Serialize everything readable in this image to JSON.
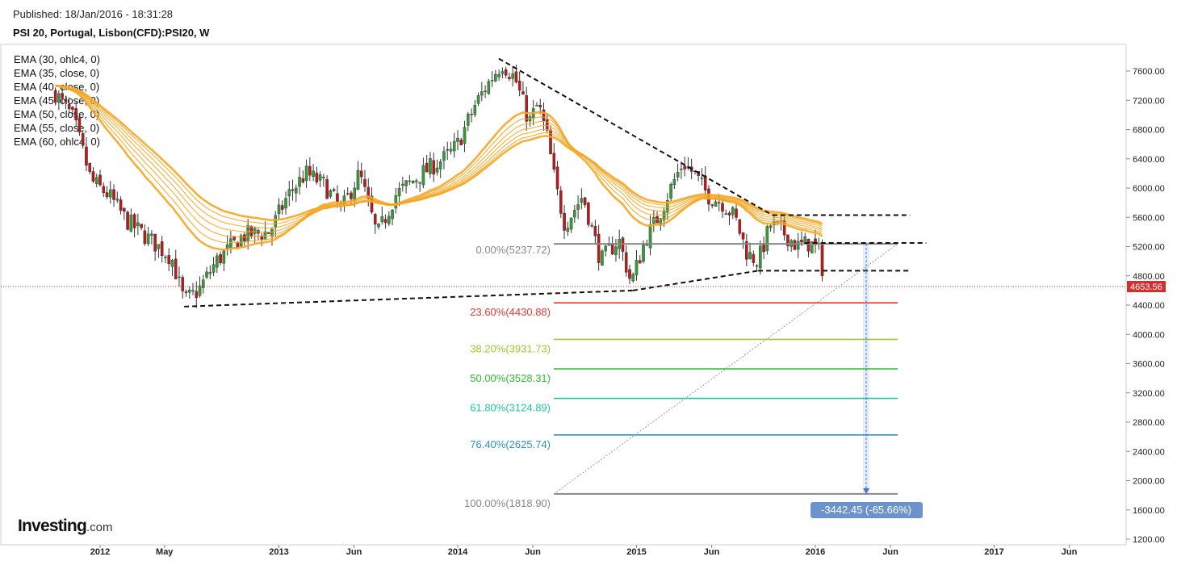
{
  "header": {
    "published": "Published: 18/Jan/2016 - 18:31:28",
    "title": "PSI 20, Portugal, Lisbon(CFD):PSI20, W"
  },
  "indicators": [
    "EMA (30, ohlc4, 0)",
    "EMA (35, close, 0)",
    "EMA (40, close, 0)",
    "EMA (45, close, 0)",
    "EMA (50, close, 0)",
    "EMA (55, close, 0)",
    "EMA (60, ohlc4, 0)"
  ],
  "logo": {
    "main": "Investing",
    "suffix": ".com"
  },
  "colors": {
    "bull": "#3a9a3a",
    "bear": "#b71c1c",
    "ema": "#f5a623",
    "fib_0": "#888888",
    "fib_23": "#e53935",
    "fib_38": "#9ccc2a",
    "fib_50": "#2ebd2e",
    "fib_61": "#26c6a0",
    "fib_76": "#2f8fc8",
    "fib_100": "#888888"
  },
  "chart_data": {
    "type": "candlestick",
    "symbol": "PSI20",
    "interval": "W",
    "ylim": [
      1200,
      7800
    ],
    "y_ticks": [
      "7600.00",
      "7200.00",
      "6800.00",
      "6400.00",
      "6000.00",
      "5600.00",
      "5200.00",
      "4800.00",
      "4400.00",
      "4000.00",
      "3600.00",
      "3200.00",
      "2800.00",
      "2400.00",
      "2000.00",
      "1600.00",
      "1200.00"
    ],
    "x_ticks": [
      "2012",
      "May",
      "2013",
      "Jun",
      "2014",
      "Jun",
      "2015",
      "Jun",
      "2016",
      "Jun",
      "2017",
      "Jun"
    ],
    "last_price": "4653.56",
    "close_path": [
      [
        2011.75,
        7300
      ],
      [
        2011.85,
        6950
      ],
      [
        2011.95,
        6100
      ],
      [
        2012.05,
        5900
      ],
      [
        2012.15,
        5550
      ],
      [
        2012.25,
        5350
      ],
      [
        2012.4,
        5050
      ],
      [
        2012.47,
        4450
      ],
      [
        2012.55,
        4600
      ],
      [
        2012.65,
        5000
      ],
      [
        2012.8,
        5350
      ],
      [
        2012.95,
        5400
      ],
      [
        2013.05,
        5900
      ],
      [
        2013.15,
        6200
      ],
      [
        2013.25,
        6050
      ],
      [
        2013.35,
        5700
      ],
      [
        2013.45,
        6200
      ],
      [
        2013.55,
        5350
      ],
      [
        2013.65,
        5900
      ],
      [
        2013.8,
        6200
      ],
      [
        2013.95,
        6450
      ],
      [
        2014.0,
        6600
      ],
      [
        2014.1,
        7150
      ],
      [
        2014.2,
        7550
      ],
      [
        2014.25,
        7700
      ],
      [
        2014.32,
        7500
      ],
      [
        2014.4,
        6900
      ],
      [
        2014.45,
        7150
      ],
      [
        2014.5,
        6700
      ],
      [
        2014.55,
        6000
      ],
      [
        2014.6,
        5500
      ],
      [
        2014.7,
        5900
      ],
      [
        2014.8,
        5000
      ],
      [
        2014.9,
        5300
      ],
      [
        2014.97,
        4700
      ],
      [
        2015.05,
        5300
      ],
      [
        2015.12,
        5600
      ],
      [
        2015.2,
        6050
      ],
      [
        2015.26,
        6350
      ],
      [
        2015.32,
        6200
      ],
      [
        2015.4,
        5900
      ],
      [
        2015.48,
        5800
      ],
      [
        2015.55,
        5600
      ],
      [
        2015.62,
        5100
      ],
      [
        2015.68,
        5000
      ],
      [
        2015.75,
        5500
      ],
      [
        2015.82,
        5400
      ],
      [
        2015.9,
        5200
      ],
      [
        2015.97,
        5250
      ],
      [
        2016.03,
        5100
      ],
      [
        2016.05,
        4654
      ]
    ],
    "ema_periods": [
      30,
      35,
      40,
      45,
      50,
      55,
      60
    ],
    "fibonacci": [
      {
        "label": "0.00%(5237.72)",
        "value": 5237.72
      },
      {
        "label": "23.60%(4430.88)",
        "value": 4430.88
      },
      {
        "label": "38.20%(3931.73)",
        "value": 3931.73
      },
      {
        "label": "50.00%(3528.31)",
        "value": 3528.31
      },
      {
        "label": "61.80%(3124.89)",
        "value": 3124.89
      },
      {
        "label": "76.40%(2625.74)",
        "value": 2625.74
      },
      {
        "label": "100.00%(1818.90)",
        "value": 1818.9
      }
    ],
    "measure_label": "-3442.45 (-65.66%)",
    "trendlines": [
      {
        "name": "upper-resistance",
        "from": [
          2014.23,
          7770
        ],
        "to": [
          2015.76,
          5630
        ]
      },
      {
        "name": "lower-support",
        "from": [
          2012.47,
          4380
        ],
        "to": [
          2014.98,
          4600
        ]
      },
      {
        "name": "support-to-2015",
        "from": [
          2014.98,
          4600
        ],
        "to": [
          2015.68,
          4870
        ]
      },
      {
        "name": "level-5630",
        "from": [
          2015.76,
          5630
        ],
        "to": [
          2016.53,
          5630
        ]
      },
      {
        "name": "level-5250",
        "from": [
          2015.94,
          5250
        ],
        "to": [
          2016.62,
          5250
        ]
      },
      {
        "name": "level-4870",
        "from": [
          2015.68,
          4870
        ],
        "to": [
          2016.52,
          4870
        ]
      }
    ]
  }
}
